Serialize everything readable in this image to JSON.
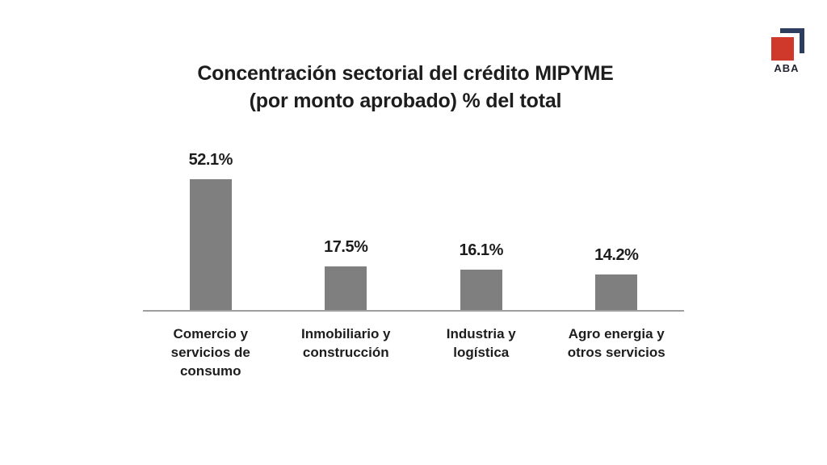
{
  "title": {
    "line1": "Concentración sectorial del crédito MIPYME",
    "line2": "(por monto aprobado) % del total"
  },
  "logo": {
    "text": "ABA",
    "red": "#cf392b",
    "navy": "#2c3d5d"
  },
  "chart_data": {
    "type": "bar",
    "title": "Concentración sectorial del crédito MIPYME (por monto aprobado) % del total",
    "categories": [
      "Comercio y servicios de consumo",
      "Inmobiliario y construcción",
      "Industria y logística",
      "Agro energia y otros servicios"
    ],
    "categories_lines": [
      [
        "Comercio y",
        "servicios de",
        "consumo"
      ],
      [
        "Inmobiliario y",
        "construcción"
      ],
      [
        "Industria y",
        "logística"
      ],
      [
        "Agro energia y",
        "otros servicios"
      ]
    ],
    "values": [
      52.1,
      17.5,
      16.1,
      14.2
    ],
    "value_labels": [
      "52.1%",
      "17.5%",
      "16.1%",
      "14.2%"
    ],
    "unit": "%",
    "xlabel": "",
    "ylabel": "",
    "ylim": [
      0,
      60
    ],
    "grid": false,
    "legend": false,
    "bar_color": "#7f7f7f",
    "axis_color": "#9e9e9e",
    "text_color": "#1d1d1d"
  }
}
